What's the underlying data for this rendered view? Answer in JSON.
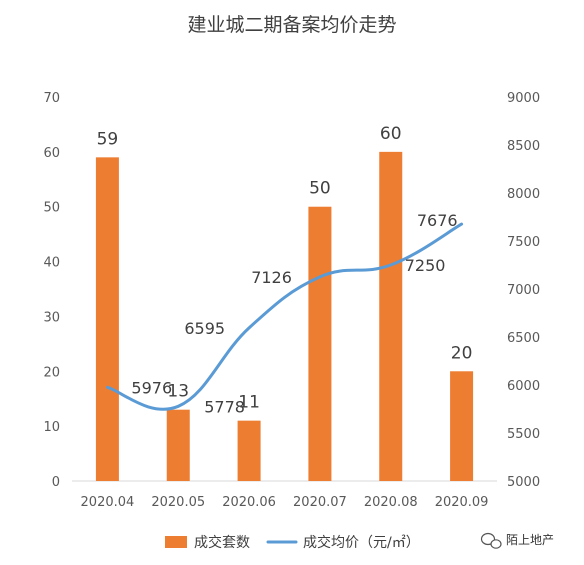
{
  "chart_data": {
    "type": "bar",
    "title": "建业城二期备案均价走势",
    "categories": [
      "2020.04",
      "2020.05",
      "2020.06",
      "2020.07",
      "2020.08",
      "2020.09"
    ],
    "series": [
      {
        "name": "成交套数",
        "type": "bar",
        "axis": "left",
        "color": "#ED7D31",
        "values": [
          59,
          13,
          11,
          50,
          60,
          20
        ]
      },
      {
        "name": "成交均价（元/㎡）",
        "type": "line",
        "axis": "right",
        "color": "#5B9BD5",
        "smooth": true,
        "values": [
          5976,
          5778,
          6595,
          7126,
          7250,
          7676
        ]
      }
    ],
    "y_left": {
      "min": 0,
      "max": 70,
      "step": 10
    },
    "y_right": {
      "min": 5000,
      "max": 9000,
      "step": 500
    },
    "grid": false,
    "legend_position": "bottom"
  },
  "watermark": {
    "text": "陌上地产",
    "icon": "wechat-icon"
  }
}
